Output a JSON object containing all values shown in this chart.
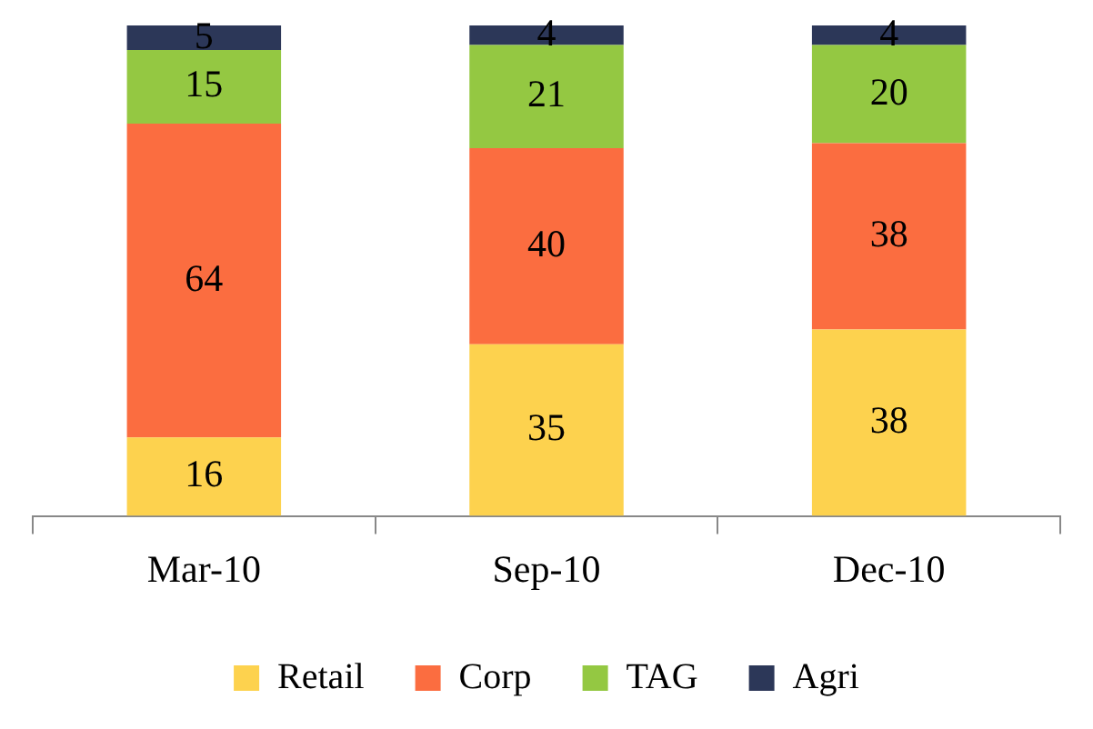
{
  "chart_data": {
    "type": "bar",
    "stacked": true,
    "categories": [
      "Mar-10",
      "Sep-10",
      "Dec-10"
    ],
    "series": [
      {
        "name": "Retail",
        "color": "#fdd24e",
        "values": [
          16,
          35,
          38
        ]
      },
      {
        "name": "Corp",
        "color": "#fb6d40",
        "values": [
          64,
          40,
          38
        ]
      },
      {
        "name": "TAG",
        "color": "#94c842",
        "values": [
          15,
          21,
          20
        ]
      },
      {
        "name": "Agri",
        "color": "#2c3758",
        "values": [
          5,
          4,
          4
        ]
      }
    ],
    "data_labels": true,
    "legend": "bottom"
  }
}
